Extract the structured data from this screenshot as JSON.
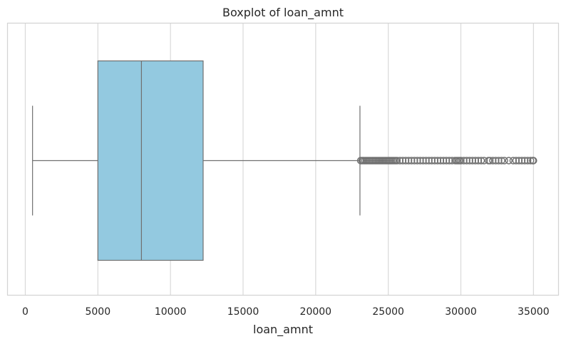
{
  "chart_data": {
    "type": "boxplot",
    "title": "Boxplot of loan_amnt",
    "xlabel": "loan_amnt",
    "ylabel": "",
    "xlim": [
      -1250,
      36750
    ],
    "xticks": [
      0,
      5000,
      10000,
      15000,
      20000,
      25000,
      30000,
      35000
    ],
    "xtick_labels": [
      "0",
      "5000",
      "10000",
      "15000",
      "20000",
      "25000",
      "30000",
      "35000"
    ],
    "grid": "vertical",
    "orientation": "horizontal",
    "colors": {
      "box_fill": "#93c9e0",
      "line": "#707070",
      "grid": "#d9d9d9",
      "frame": "#d3d3d3"
    },
    "box": {
      "whisker_low": 500,
      "q1": 5000,
      "median": 8000,
      "q3": 12250,
      "whisker_high": 23050
    },
    "outliers": [
      23100,
      23200,
      23300,
      23400,
      23500,
      23600,
      23700,
      23800,
      23900,
      24000,
      24100,
      24200,
      24300,
      24400,
      24500,
      24600,
      24700,
      24800,
      24900,
      25000,
      25100,
      25200,
      25300,
      25400,
      25500,
      25600,
      25800,
      26000,
      26200,
      26400,
      26600,
      26800,
      27000,
      27200,
      27400,
      27600,
      27800,
      28000,
      28200,
      28400,
      28600,
      28800,
      29000,
      29200,
      29400,
      29600,
      29700,
      29800,
      29900,
      30000,
      30200,
      30400,
      30600,
      30800,
      31000,
      31200,
      31400,
      31600,
      31900,
      32000,
      32200,
      32400,
      32600,
      32800,
      33000,
      33300,
      33600,
      33800,
      34000,
      34200,
      34400,
      34600,
      34800,
      34950,
      35000
    ]
  }
}
